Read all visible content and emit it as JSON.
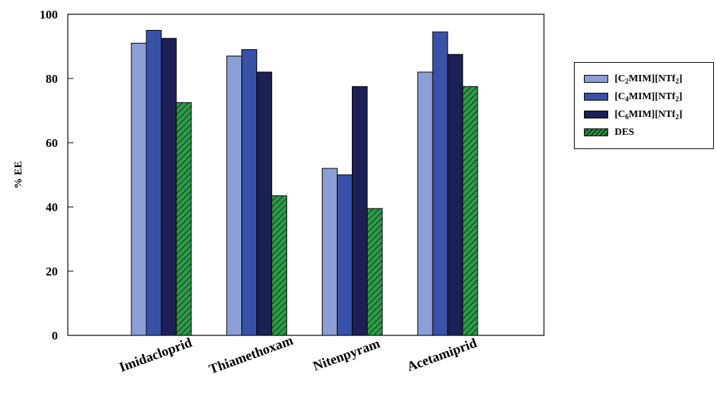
{
  "chart_data": {
    "type": "bar",
    "title": "",
    "xlabel": "",
    "ylabel": "% EE",
    "ylim": [
      0,
      100
    ],
    "yticks": [
      "0",
      "20",
      "40",
      "60",
      "80",
      "100"
    ],
    "categories": [
      "Imidacloprid",
      "Thiamethoxam",
      "Nitenpyram",
      "Acetamiprid"
    ],
    "series": [
      {
        "name": "[C2MIM][NTf2]",
        "color": "#8c9ed6",
        "pattern": "solid",
        "values": [
          91,
          87,
          52,
          82
        ]
      },
      {
        "name": "[C4MIM][NTf2]",
        "color": "#3a51a8",
        "pattern": "solid",
        "values": [
          95,
          89,
          50,
          94.5
        ]
      },
      {
        "name": "[C6MIM][NTf2]",
        "color": "#1d1f57",
        "pattern": "solid",
        "values": [
          92.5,
          82,
          77.5,
          87.5
        ]
      },
      {
        "name": "DES",
        "color": "#2f9a48",
        "pattern": "hatched",
        "values": [
          72.5,
          43.5,
          39.5,
          77.5
        ]
      }
    ],
    "grid": false,
    "legend_position": "right"
  }
}
